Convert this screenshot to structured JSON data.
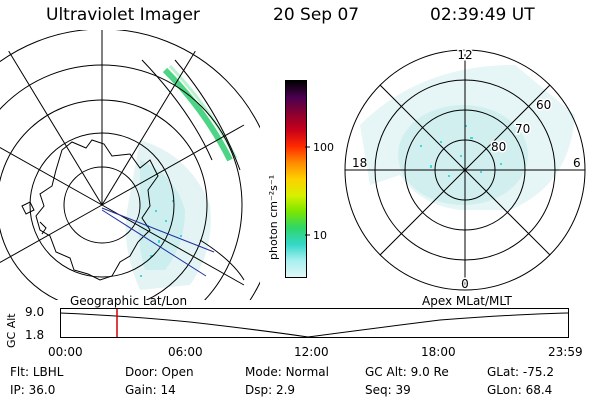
{
  "header": {
    "instrument": "Ultraviolet Imager",
    "date": "20 Sep 07",
    "time": "02:39:49 UT"
  },
  "colorbar": {
    "unit_label": "photon cm⁻²s⁻¹",
    "ticks": [
      "100",
      "10"
    ],
    "colors": [
      "#000000",
      "#4a0050",
      "#8a0030",
      "#c8001a",
      "#ff2a00",
      "#ff8a00",
      "#ffd000",
      "#d8f000",
      "#7be600",
      "#2ed66a",
      "#35d7c8",
      "#a8f0f0",
      "#e0f7f7"
    ]
  },
  "polar_plot": {
    "mlt_labels": [
      "12",
      "18",
      "6",
      "0"
    ],
    "lat_labels": [
      "60",
      "70",
      "80"
    ]
  },
  "timeline": {
    "y_axis_title": "GC Alt",
    "y_ticks": [
      "9.0",
      "1.8"
    ],
    "left_title": "Geographic Lat/Lon",
    "right_title": "Apex MLat/MLT",
    "x_ticks": [
      "00:00",
      "06:00",
      "12:00",
      "18:00",
      "23:59"
    ],
    "marker_time": "02:39:49"
  },
  "footer": {
    "row1": [
      {
        "label": "Flt:",
        "value": "LBHL"
      },
      {
        "label": "Door:",
        "value": "Open"
      },
      {
        "label": "Mode:",
        "value": "Normal"
      },
      {
        "label": "GC Alt:",
        "value": "9.0 Re"
      },
      {
        "label": "GLat:",
        "value": "-75.2"
      }
    ],
    "row2": [
      {
        "label": "IP:",
        "value": "36.0"
      },
      {
        "label": "Gain:",
        "value": "14"
      },
      {
        "label": "Dsp:",
        "value": "2.9"
      },
      {
        "label": "Seq:",
        "value": "39"
      },
      {
        "label": "GLon:",
        "value": "68.4"
      }
    ]
  }
}
